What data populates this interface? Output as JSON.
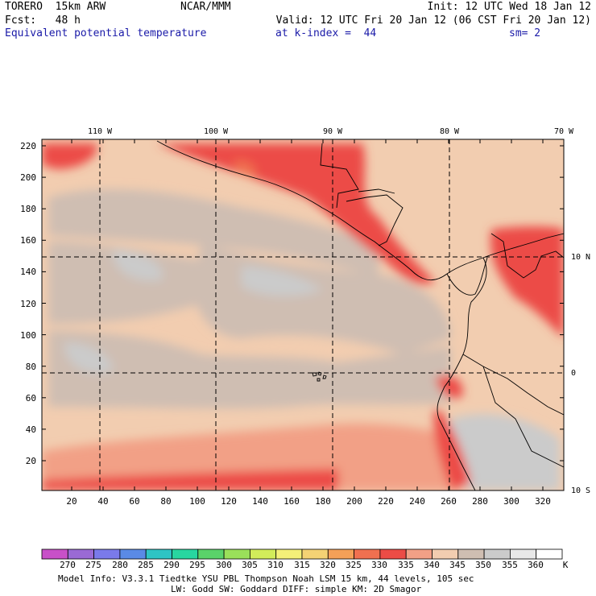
{
  "header": {
    "model": "TORERO  15km ARW",
    "center": "NCAR/MMM",
    "init": "Init: 12 UTC Wed 18 Jan 12",
    "fcst": "Fcst:   48 h",
    "valid": "Valid: 12 UTC Fri 20 Jan 12 (06 CST Fri 20 Jan 12)",
    "field": "Equivalent potential temperature",
    "level": "at k-index =  44",
    "smooth": "sm= 2"
  },
  "map": {
    "top_lon_labels": [
      "110 W",
      "100 W",
      "90 W",
      "80 W",
      "70 W"
    ],
    "right_lat_labels": [
      "10 N",
      "0",
      "10 S"
    ],
    "left_ticks": [
      "220",
      "200",
      "180",
      "160",
      "140",
      "120",
      "100",
      "80",
      "60",
      "40",
      "20"
    ],
    "bottom_ticks": [
      "20",
      "40",
      "60",
      "80",
      "100",
      "120",
      "140",
      "160",
      "180",
      "200",
      "220",
      "240",
      "260",
      "280",
      "300",
      "320"
    ]
  },
  "colorbar": {
    "unit": "K",
    "labels": [
      "270",
      "275",
      "280",
      "285",
      "290",
      "295",
      "300",
      "305",
      "310",
      "315",
      "320",
      "325",
      "330",
      "335",
      "340",
      "345",
      "350",
      "355",
      "360"
    ],
    "colors": [
      "#c850c8",
      "#9a6ad4",
      "#7a7aea",
      "#5a8ae6",
      "#2ec4c4",
      "#28d6a0",
      "#5ad26a",
      "#9ae05a",
      "#d2ec5a",
      "#f4f078",
      "#f4d274",
      "#f4a058",
      "#f07050",
      "#ec4c46",
      "#f2a086",
      "#f2cdb0",
      "#cfbeb2",
      "#cbcbcb",
      "#e8e8e8",
      "#ffffff"
    ]
  },
  "footer": {
    "line1": "Model Info: V3.3.1    Tiedtke YSU PBL  Thompson     Noah LSM  15 km,    44 levels,  105 sec",
    "line2": "LW: Godd SW: Goddard DIFF: simple KM: 2D Smagor"
  }
}
